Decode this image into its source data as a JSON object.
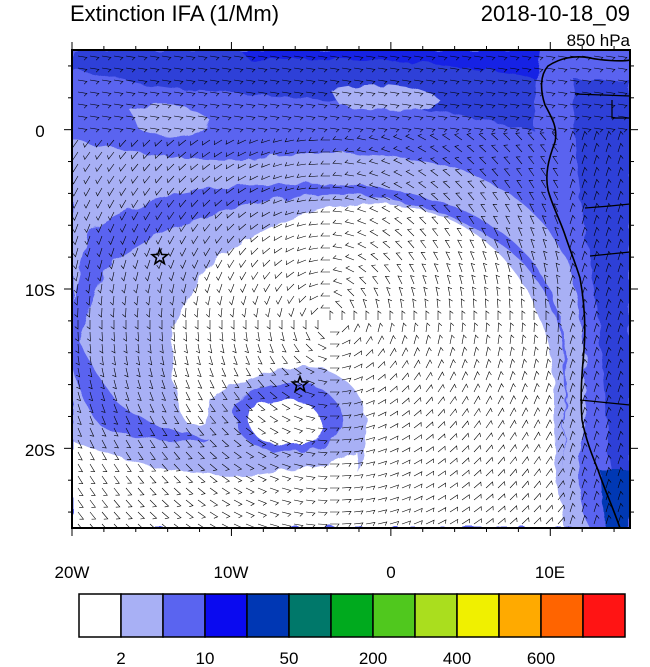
{
  "title": "Extinction IFA (1/Mm)",
  "datetime": "2018-10-18_09",
  "level": "850 hPa",
  "lat_ticks": [
    "0",
    "10S",
    "20S"
  ],
  "lon_ticks": [
    "20W",
    "10W",
    "0",
    "10E"
  ],
  "extent": {
    "lon_min": -20,
    "lon_max": 15,
    "lat_min": -25,
    "lat_max": 5
  },
  "colorbar": {
    "colors": [
      "#ffffff",
      "#a8b0f5",
      "#5a64f0",
      "#0a0af0",
      "#0037b4",
      "#00786a",
      "#00aa1e",
      "#50c81e",
      "#aade1e",
      "#f0f000",
      "#ffaa00",
      "#ff6400",
      "#ff1414"
    ],
    "labels": [
      "2",
      "10",
      "50",
      "200",
      "400",
      "600"
    ]
  },
  "markers": [
    {
      "name": "star-west",
      "lon": -14.5,
      "lat": -8
    },
    {
      "name": "star-center",
      "lon": -5.7,
      "lat": -16
    }
  ]
}
